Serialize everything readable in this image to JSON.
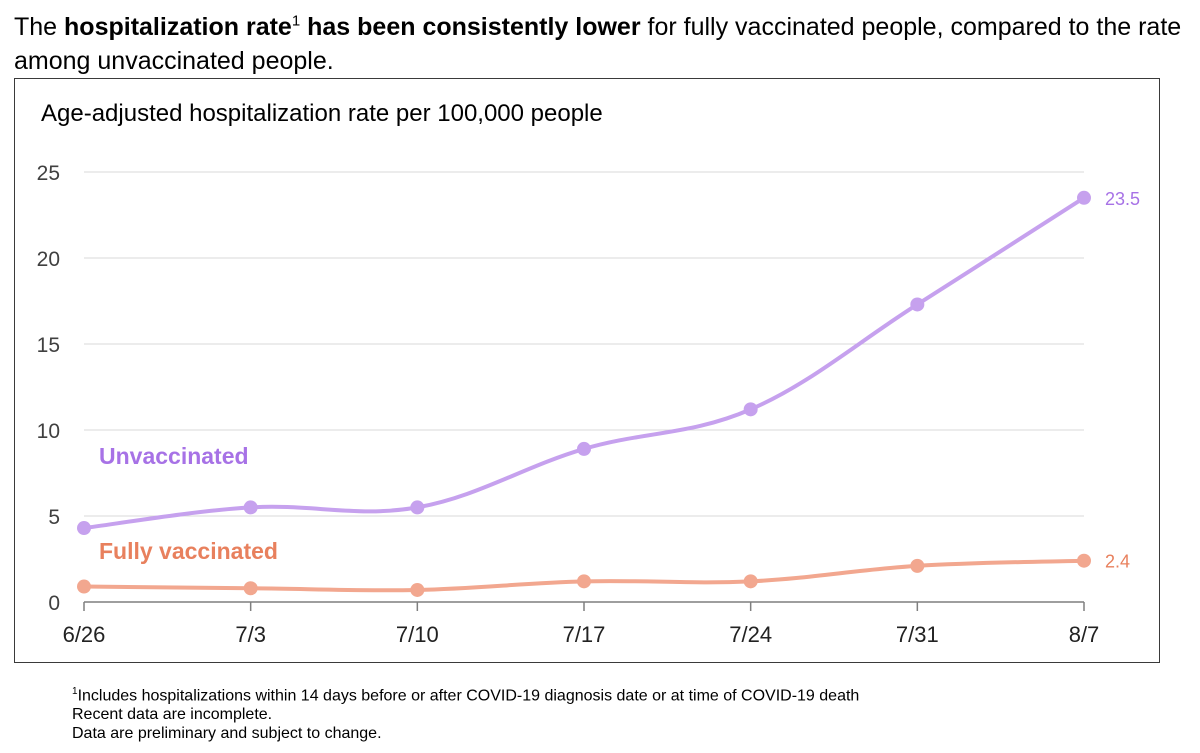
{
  "headline": {
    "part1": "The ",
    "bold1": "hospitalization rate",
    "sup": "1",
    "bold2": " has been consistently lower",
    "part2": " for fully vaccinated people, compared to the rate among unvaccinated people."
  },
  "footnotes": {
    "line1_sup": "1",
    "line1": "Includes hospitalizations within 14 days before or after COVID-19 diagnosis date or at time of COVID-19 death",
    "line2": "Recent data are incomplete.",
    "line3": "Data are preliminary and subject to change."
  },
  "colors": {
    "unvaccinated_line": "#C6A1EE",
    "unvaccinated_label": "#A772E6",
    "vaccinated_line": "#F2A78F",
    "vaccinated_label": "#E8805D",
    "grid": "#d9d9d9",
    "axis": "#7f7f7f"
  },
  "chart_data": {
    "type": "line",
    "title": "Age-adjusted hospitalization rate per 100,000 people",
    "categories": [
      "6/26",
      "7/3",
      "7/10",
      "7/17",
      "7/24",
      "7/31",
      "8/7"
    ],
    "ylim": [
      0,
      25
    ],
    "yticks": [
      0,
      5,
      10,
      15,
      20,
      25
    ],
    "grid": true,
    "series": [
      {
        "name": "Unvaccinated",
        "values": [
          4.3,
          5.5,
          5.5,
          8.9,
          11.2,
          17.3,
          23.5
        ],
        "end_label": "23.5"
      },
      {
        "name": "Fully vaccinated",
        "values": [
          0.9,
          0.8,
          0.7,
          1.2,
          1.2,
          2.1,
          2.4
        ],
        "end_label": "2.4"
      }
    ]
  }
}
